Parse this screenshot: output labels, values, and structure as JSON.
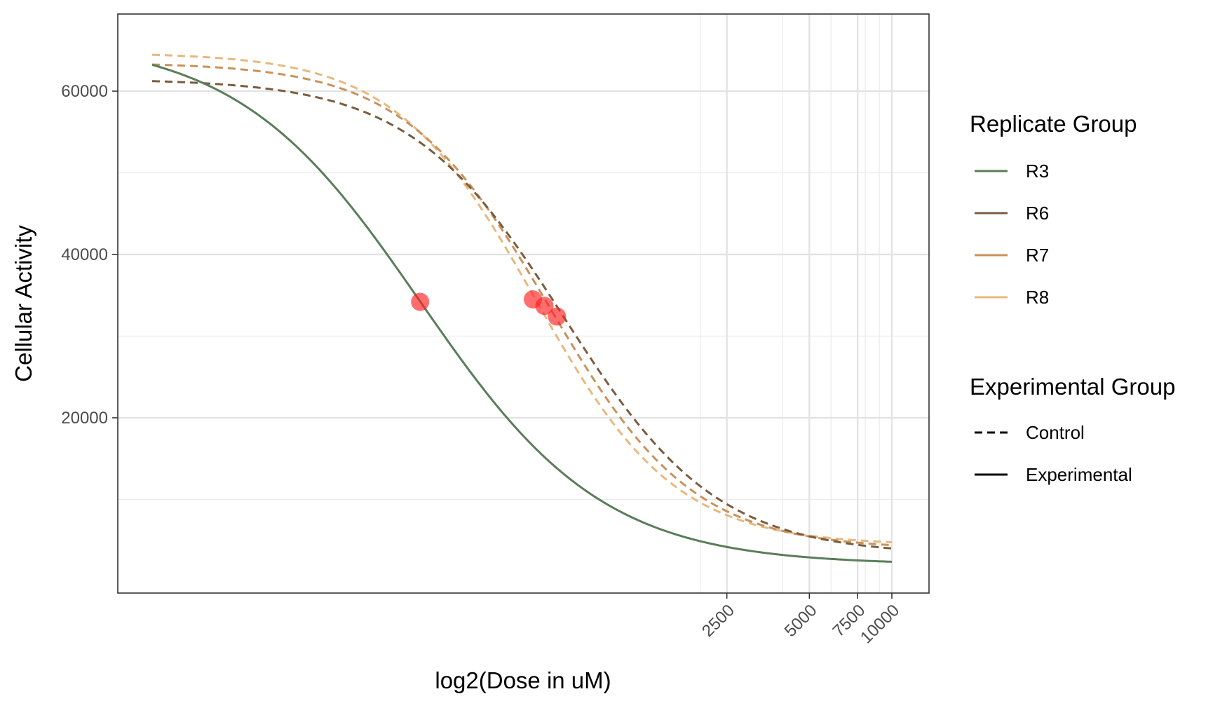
{
  "chart_data": {
    "type": "line",
    "title": "",
    "xlabel": "log2(Dose in uM)",
    "ylabel": "Cellular Activity",
    "x_scale": "log2",
    "xlim": [
      20,
      10000
    ],
    "ylim": [
      0,
      69000
    ],
    "grid": true,
    "x_ticks": [
      2500,
      5000,
      7500,
      10000
    ],
    "x_tick_labels": [
      "2500",
      "5000",
      "7500",
      "10000"
    ],
    "x_minor_ticks": [
      2000,
      4000,
      6000,
      8000,
      9000
    ],
    "y_ticks": [
      20000,
      40000,
      60000
    ],
    "y_tick_labels": [
      "20000",
      "40000",
      "60000"
    ],
    "y_minor_ticks": [
      10000,
      30000,
      50000
    ],
    "series": [
      {
        "name": "R3",
        "group": "Experimental",
        "color": "#5a7d5a",
        "dash": "solid",
        "top": 66500,
        "bottom": 2000,
        "ec50": 190,
        "hill": 1.3
      },
      {
        "name": "R6",
        "group": "Control",
        "color": "#7a5c3e",
        "dash": "dashed",
        "top": 61500,
        "bottom": 3200,
        "ec50": 635,
        "hill": 1.55
      },
      {
        "name": "R7",
        "group": "Control",
        "color": "#c9925a",
        "dash": "dashed",
        "top": 63500,
        "bottom": 3900,
        "ec50": 560,
        "hill": 1.65
      },
      {
        "name": "R8",
        "group": "Control",
        "color": "#e8b87e",
        "dash": "dashed",
        "top": 64700,
        "bottom": 4400,
        "ec50": 500,
        "hill": 1.7
      }
    ],
    "points": [
      {
        "x": 190,
        "y": 34200,
        "color": "#ff2020"
      },
      {
        "x": 490,
        "y": 34500,
        "color": "#ff2020"
      },
      {
        "x": 540,
        "y": 33700,
        "color": "#ff2020"
      },
      {
        "x": 600,
        "y": 32400,
        "color": "#ff2020"
      }
    ],
    "legend": {
      "placement": "right",
      "replicate_title": "Replicate Group",
      "replicate_items": [
        {
          "label": "R3",
          "color": "#5a7d5a"
        },
        {
          "label": "R6",
          "color": "#7a5c3e"
        },
        {
          "label": "R7",
          "color": "#c9925a"
        },
        {
          "label": "R8",
          "color": "#e8b87e"
        }
      ],
      "experimental_title": "Experimental Group",
      "experimental_items": [
        {
          "label": "Control",
          "dash": "dashed"
        },
        {
          "label": "Experimental",
          "dash": "solid"
        }
      ]
    }
  }
}
